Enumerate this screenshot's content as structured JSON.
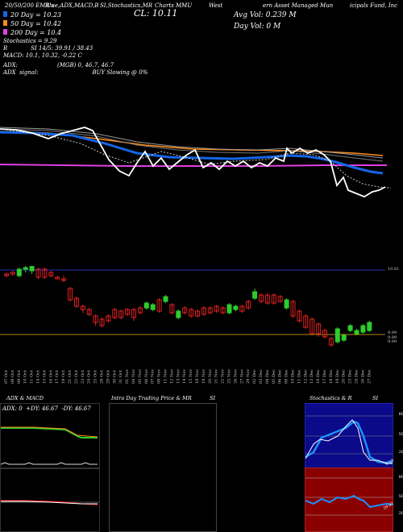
{
  "header": {
    "line1_parts": [
      "20/50/200 EMA's",
      "Blue,ADX,MACD,B",
      "SI,Stochastics,MR",
      "Charts MMU",
      "West",
      "ern Asset Managed Mun",
      "icipals Fund, Inc"
    ],
    "cl_label": "CL: 10.11",
    "avg_vol": "Avg Vol: 0.239 M",
    "day_vol": "Day Vol: 0   M"
  },
  "legend": {
    "ema20": "20 Day = 10.23",
    "ema50": "50 Day = 10.42",
    "ema200": "200 Day = 10.4",
    "rsi": "Stochastics = 9.29",
    "bb": "R             SI 14/5: 39.91 / 38.43",
    "macd": "MACD: 10.1, 10.32, -0.22  C",
    "adx": "ADX:                      (MGB) 0, 46.7, 46.7",
    "adx_signal": "ADX  signal:                              BUY Slowing @ 0%"
  },
  "colors": {
    "ema20": "#1565e6",
    "ema50": "#ff8c1a",
    "ema200": "#e040e0",
    "bull": "#2ecc2e",
    "bear": "#e02020",
    "price": "#ffffff"
  },
  "candle_axis": {
    "top_label": "10.81",
    "bottom_labels": [
      "9.99",
      "9.99",
      "9.99"
    ]
  },
  "x_dates": [
    "07 Oct",
    "08 Oct",
    "09 Oct",
    "10 Oct",
    "11 Oct",
    "14 Oct",
    "15 Oct",
    "16 Oct",
    "17 Oct",
    "18 Oct",
    "21 Oct",
    "22 Oct",
    "23 Oct",
    "24 Oct",
    "25 Oct",
    "28 Oct",
    "29 Oct",
    "30 Oct",
    "31 Oct",
    "01 Nov",
    "04 Nov",
    "05 Nov",
    "06 Nov",
    "07 Nov",
    "08 Nov",
    "11 Nov",
    "12 Nov",
    "13 Nov",
    "14 Nov",
    "15 Nov",
    "18 Nov",
    "19 Nov",
    "20 Nov",
    "21 Nov",
    "22 Nov",
    "25 Nov",
    "26 Nov",
    "27 Nov",
    "29 Nov",
    "02 Dec",
    "03 Dec",
    "04 Dec",
    "05 Dec",
    "06 Dec",
    "09 Dec",
    "10 Dec",
    "11 Dec",
    "12 Dec",
    "13 Dec",
    "16 Dec",
    "17 Dec",
    "18 Dec",
    "19 Dec",
    "20 Dec",
    "23 Dec",
    "24 Dec",
    "26 Dec",
    "27 Dec"
  ],
  "panels": {
    "adx_title": "ADX  & MACD",
    "adx_values": "ADX: 0  +DY: 46.67  -DY: 46.67",
    "intraday_title": "Intra  Day Trading Price  & MR",
    "intraday_si": "SI",
    "stoch_title": "Stochastics & R",
    "stoch_si": "SI",
    "stoch_ticks": [
      "80",
      "50",
      "20"
    ],
    "rsi_ticks": [
      "80",
      "50",
      "20"
    ],
    "stoch_value": "9.29",
    "rsi_value": "39.91"
  }
}
